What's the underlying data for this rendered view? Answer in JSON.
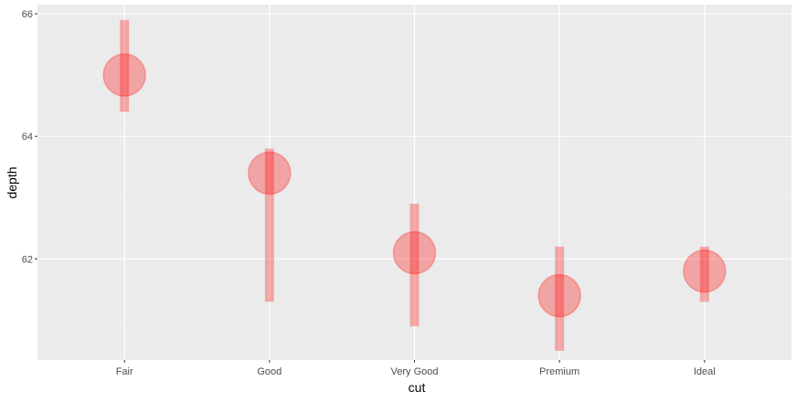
{
  "colors": {
    "panel_background": "#EBEBEB",
    "grid_major": "#FFFFFF",
    "grid_minor": "#F5F5F5",
    "tick_mark": "#333333",
    "tick_label": "#4D4D4D",
    "mark_fill": "#FF0000"
  },
  "chart_data": {
    "type": "scatter",
    "xlabel": "cut",
    "ylabel": "depth",
    "categories": [
      "Fair",
      "Good",
      "Very Good",
      "Premium",
      "Ideal"
    ],
    "ylim": [
      60.35,
      66.15
    ],
    "y_ticks": [
      62,
      64,
      66
    ],
    "y_tick_labels": [
      "62",
      "64",
      "66"
    ],
    "grid": true,
    "legend": "none",
    "points": [
      {
        "category": "Fair",
        "y": 65.0,
        "ymin": 64.4,
        "ymax": 65.9
      },
      {
        "category": "Good",
        "y": 63.4,
        "ymin": 61.3,
        "ymax": 63.8
      },
      {
        "category": "Very Good",
        "y": 62.1,
        "ymin": 60.9,
        "ymax": 62.9
      },
      {
        "category": "Premium",
        "y": 61.4,
        "ymin": 60.5,
        "ymax": 62.2
      },
      {
        "category": "Ideal",
        "y": 61.8,
        "ymin": 61.3,
        "ymax": 62.2
      }
    ]
  }
}
